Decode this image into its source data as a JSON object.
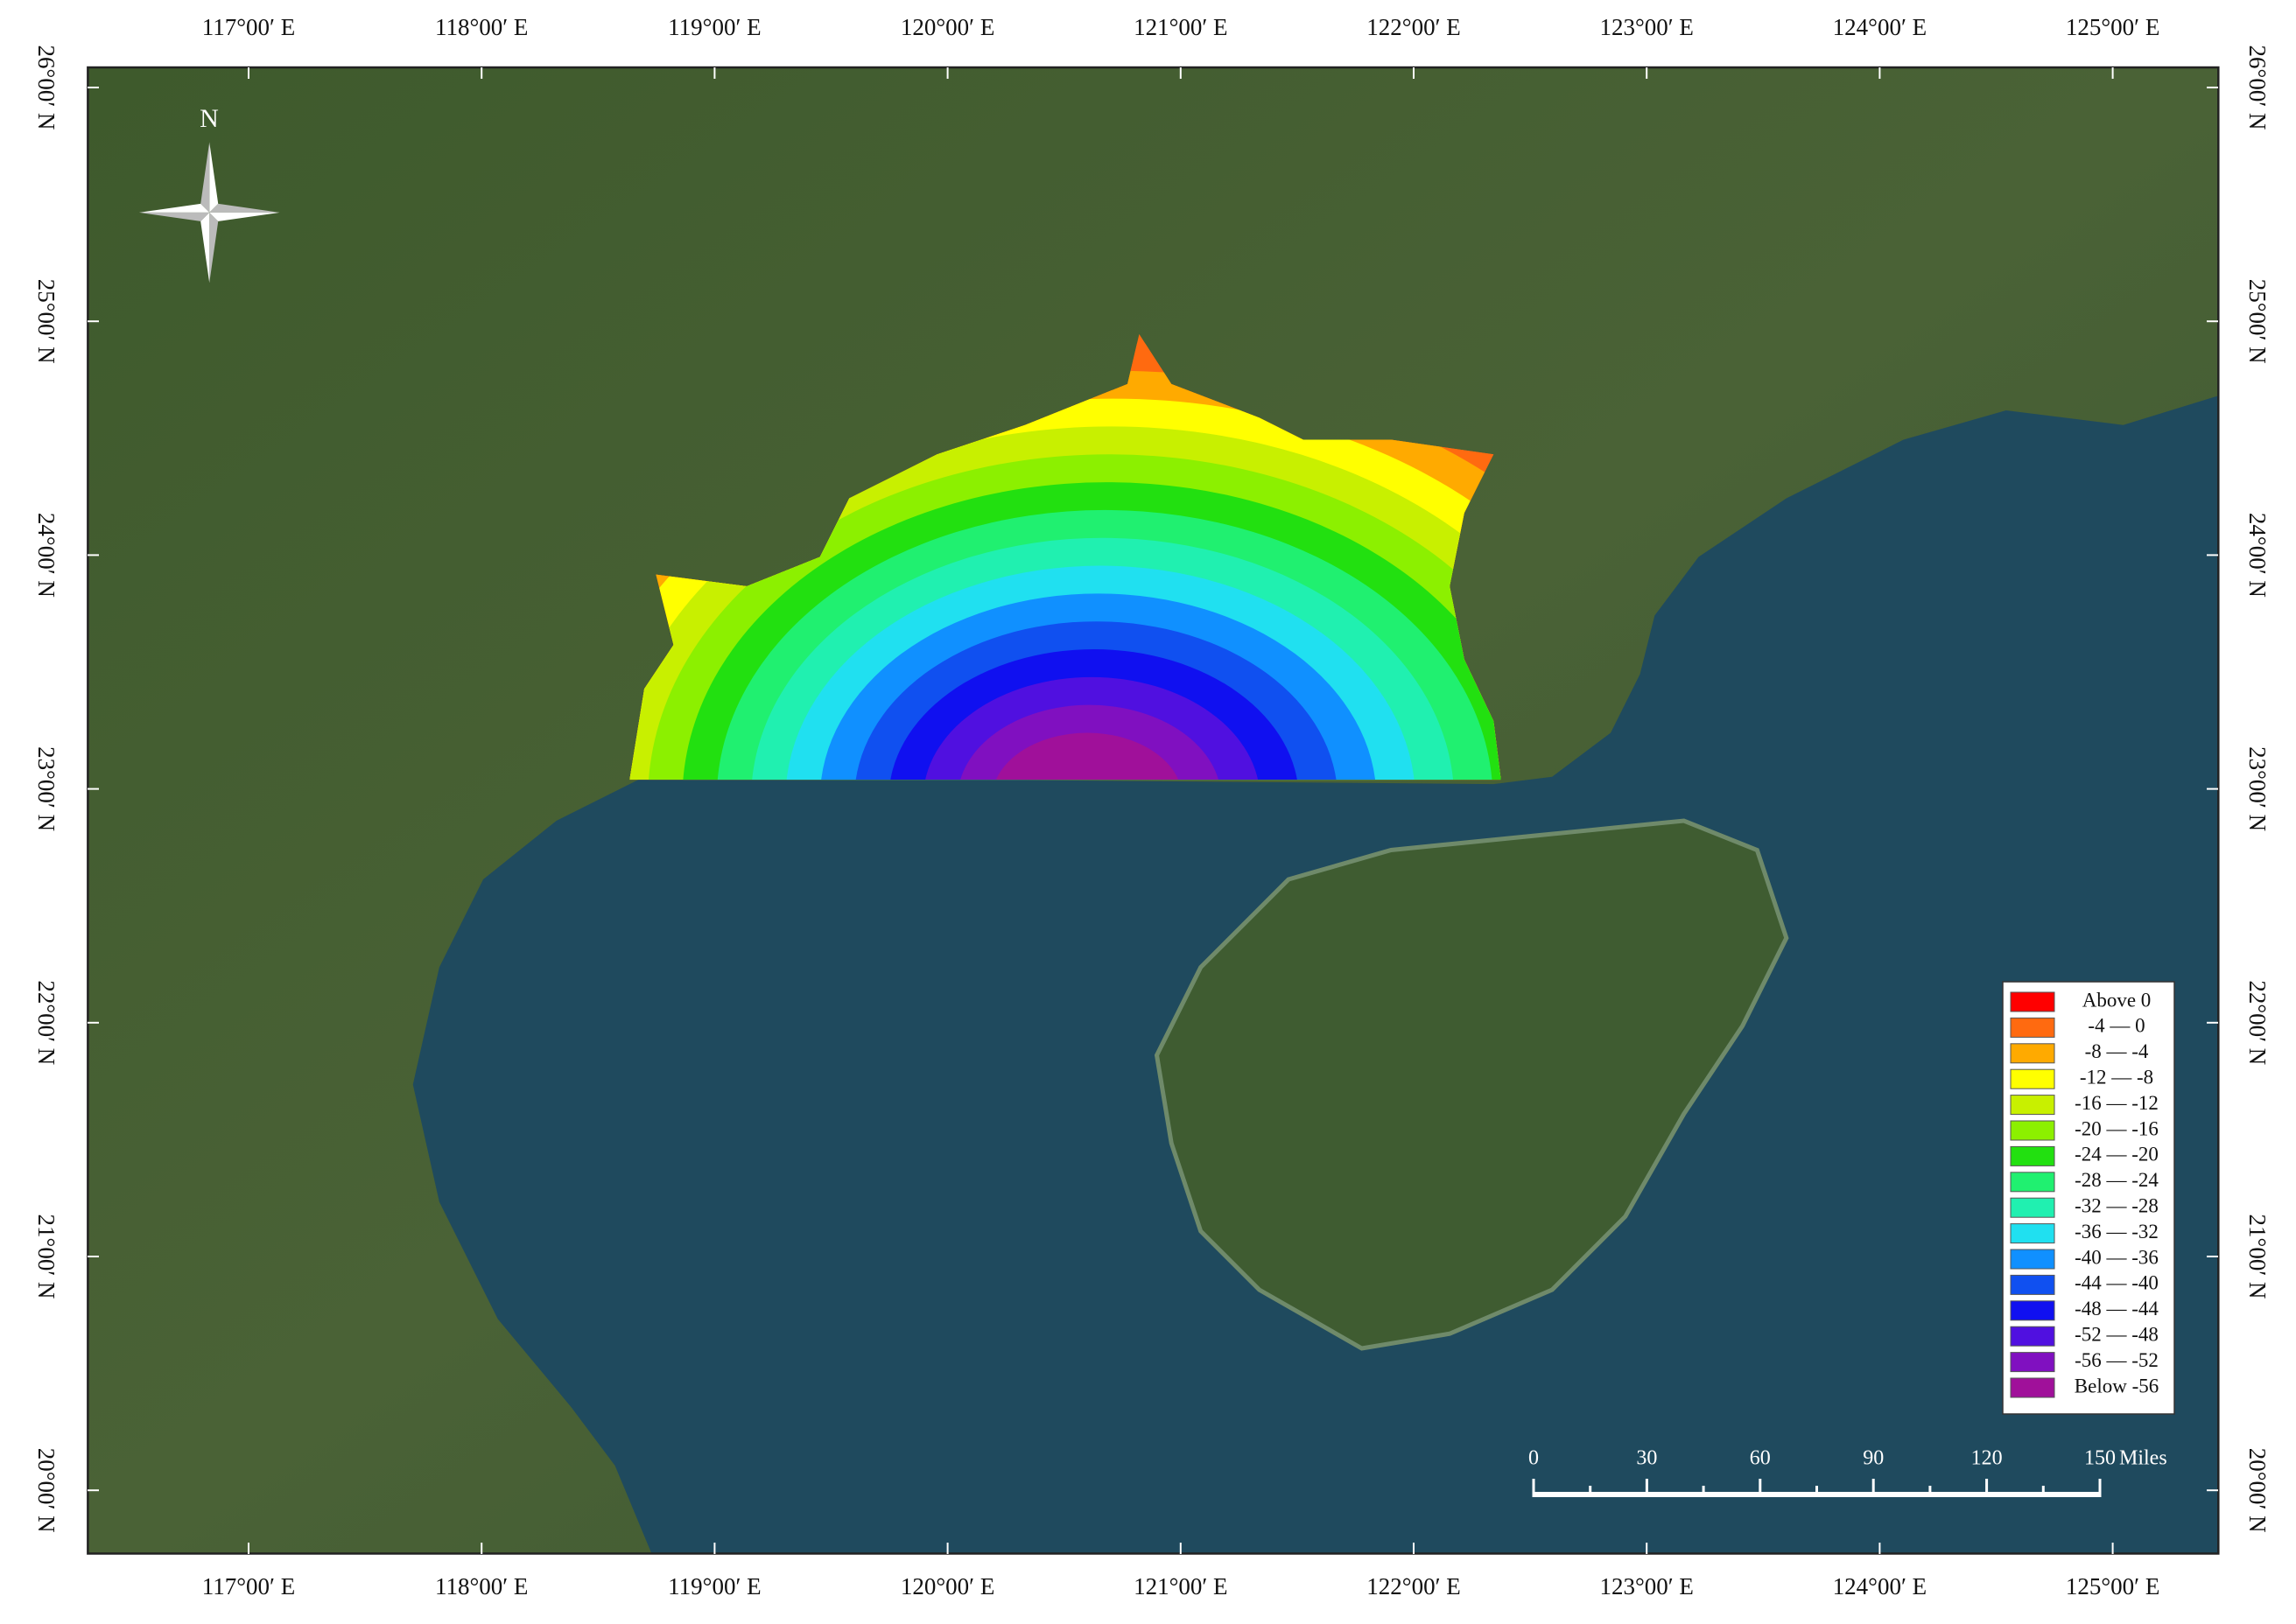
{
  "map": {
    "longitude_labels": [
      "117°00′ E",
      "118°00′ E",
      "119°00′ E",
      "120°00′ E",
      "121°00′ E",
      "122°00′ E",
      "123°00′ E",
      "124°00′ E",
      "125°00′ E"
    ],
    "latitude_labels": [
      "26°00′ N",
      "25°00′ N",
      "24°00′ N",
      "23°00′ N",
      "22°00′ N",
      "21°00′ N",
      "20°00′ N"
    ],
    "north_label": "N",
    "legend": {
      "entries": [
        {
          "label": "Above  0",
          "color": "#ff0000"
        },
        {
          "label": "-4 — 0",
          "color": "#ff6a10"
        },
        {
          "label": "-8 — -4",
          "color": "#ffaa00"
        },
        {
          "label": "-12 — -8",
          "color": "#ffff00"
        },
        {
          "label": "-16 — -12",
          "color": "#c8f000"
        },
        {
          "label": "-20 — -16",
          "color": "#8cf000"
        },
        {
          "label": "-24 — -20",
          "color": "#22e010"
        },
        {
          "label": "-28 — -24",
          "color": "#20f070"
        },
        {
          "label": "-32 — -28",
          "color": "#20f0b0"
        },
        {
          "label": "-36 — -32",
          "color": "#20e0f0"
        },
        {
          "label": "-40 — -36",
          "color": "#1090ff"
        },
        {
          "label": "-44 — -40",
          "color": "#1050f0"
        },
        {
          "label": "-48 — -44",
          "color": "#1010f0"
        },
        {
          "label": "-52 — -48",
          "color": "#5010e0"
        },
        {
          "label": "-56 — -52",
          "color": "#8010c0"
        },
        {
          "label": "Below -56",
          "color": "#a0109a"
        }
      ]
    },
    "scale_bar": {
      "ticks": [
        0,
        30,
        60,
        90,
        120,
        150
      ],
      "unit": "Miles"
    }
  }
}
